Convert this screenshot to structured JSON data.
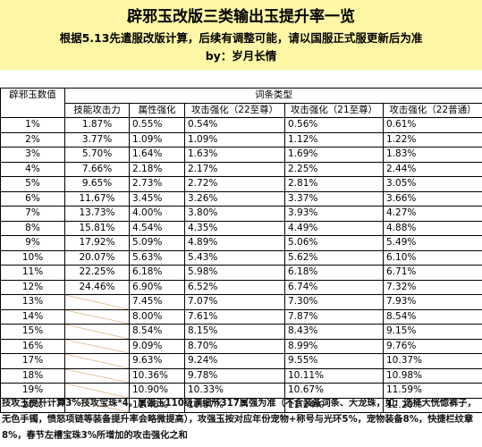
{
  "title": "辟邪玉改版三类输出玉提升率一览",
  "subtitle": "根据5.13先遣服改版计算，后续有调整可能，请以国服正式服更新后为准",
  "author": "by：岁月长情",
  "table": {
    "level_header": "辟邪玉数值",
    "group_header": "词条类型",
    "columns": [
      "技能攻击力",
      "属性强化",
      "攻击强化（22至尊）",
      "攻击强化（21至尊）",
      "攻击强化（22普通）"
    ],
    "rows": [
      {
        "level": "1%",
        "skill": "1.87%",
        "elem": "0.55%",
        "atk22z": "0.54%",
        "atk21z": "0.56%",
        "atk22p": "0.61%"
      },
      {
        "level": "2%",
        "skill": "3.77%",
        "elem": "1.09%",
        "atk22z": "1.09%",
        "atk21z": "1.12%",
        "atk22p": "1.22%"
      },
      {
        "level": "3%",
        "skill": "5.70%",
        "elem": "1.64%",
        "atk22z": "1.63%",
        "atk21z": "1.69%",
        "atk22p": "1.83%"
      },
      {
        "level": "4%",
        "skill": "7.66%",
        "elem": "2.18%",
        "atk22z": "2.17%",
        "atk21z": "2.25%",
        "atk22p": "2.44%"
      },
      {
        "level": "5%",
        "skill": "9.65%",
        "elem": "2.73%",
        "atk22z": "2.72%",
        "atk21z": "2.81%",
        "atk22p": "3.05%"
      },
      {
        "level": "6%",
        "skill": "11.67%",
        "elem": "3.45%",
        "atk22z": "3.26%",
        "atk21z": "3.37%",
        "atk22p": "3.66%"
      },
      {
        "level": "7%",
        "skill": "13.73%",
        "elem": "4.00%",
        "atk22z": "3.80%",
        "atk21z": "3.93%",
        "atk22p": "4.27%"
      },
      {
        "level": "8%",
        "skill": "15.81%",
        "elem": "4.54%",
        "atk22z": "4.35%",
        "atk21z": "4.49%",
        "atk22p": "4.88%"
      },
      {
        "level": "9%",
        "skill": "17.92%",
        "elem": "5.09%",
        "atk22z": "4.89%",
        "atk21z": "5.06%",
        "atk22p": "5.49%"
      },
      {
        "level": "10%",
        "skill": "20.07%",
        "elem": "5.63%",
        "atk22z": "5.43%",
        "atk21z": "5.62%",
        "atk22p": "6.10%"
      },
      {
        "level": "11%",
        "skill": "22.25%",
        "elem": "6.18%",
        "atk22z": "5.98%",
        "atk21z": "6.18%",
        "atk22p": "6.71%"
      },
      {
        "level": "12%",
        "skill": "24.46%",
        "elem": "6.90%",
        "atk22z": "6.52%",
        "atk21z": "6.74%",
        "atk22p": "7.32%"
      },
      {
        "level": "13%",
        "skill": "",
        "elem": "7.45%",
        "atk22z": "7.07%",
        "atk21z": "7.30%",
        "atk22p": "7.93%"
      },
      {
        "level": "14%",
        "skill": "",
        "elem": "8.00%",
        "atk22z": "7.61%",
        "atk21z": "7.87%",
        "atk22p": "8.54%"
      },
      {
        "level": "15%",
        "skill": "",
        "elem": "8.54%",
        "atk22z": "8.15%",
        "atk21z": "8.43%",
        "atk22p": "9.15%"
      },
      {
        "level": "16%",
        "skill": "",
        "elem": "9.09%",
        "atk22z": "8.70%",
        "atk21z": "8.99%",
        "atk22p": "9.76%"
      },
      {
        "level": "17%",
        "skill": "",
        "elem": "9.63%",
        "atk22z": "9.24%",
        "atk21z": "9.55%",
        "atk22p": "10.37%"
      },
      {
        "level": "18%",
        "skill": "",
        "elem": "10.36%",
        "atk22z": "9.78%",
        "atk21z": "10.11%",
        "atk22p": "10.98%"
      },
      {
        "level": "19%",
        "skill": "",
        "elem": "10.90%",
        "atk22z": "10.33%",
        "atk21z": "10.67%",
        "atk22p": "11.59%"
      },
      {
        "level": "20%",
        "skill": "",
        "elem": "11.45%",
        "atk22z": "10.87%",
        "atk21z": "11.24%",
        "atk22p": "12.20%"
      }
    ]
  },
  "footnote": "技攻玉提升计算3%技攻宝珠*4，属强玉110级满细节317属强为准（不含装备词条、大龙珠，如：选择大恍惚裤子，无色手镯，愤怒项链等装备提升率会略微提高），攻强玉按对应年份宠物+称号与光环5%，宠物装备8%，快捷栏纹章8%，春节左槽宝珠3%所增加的攻击强化之和"
}
